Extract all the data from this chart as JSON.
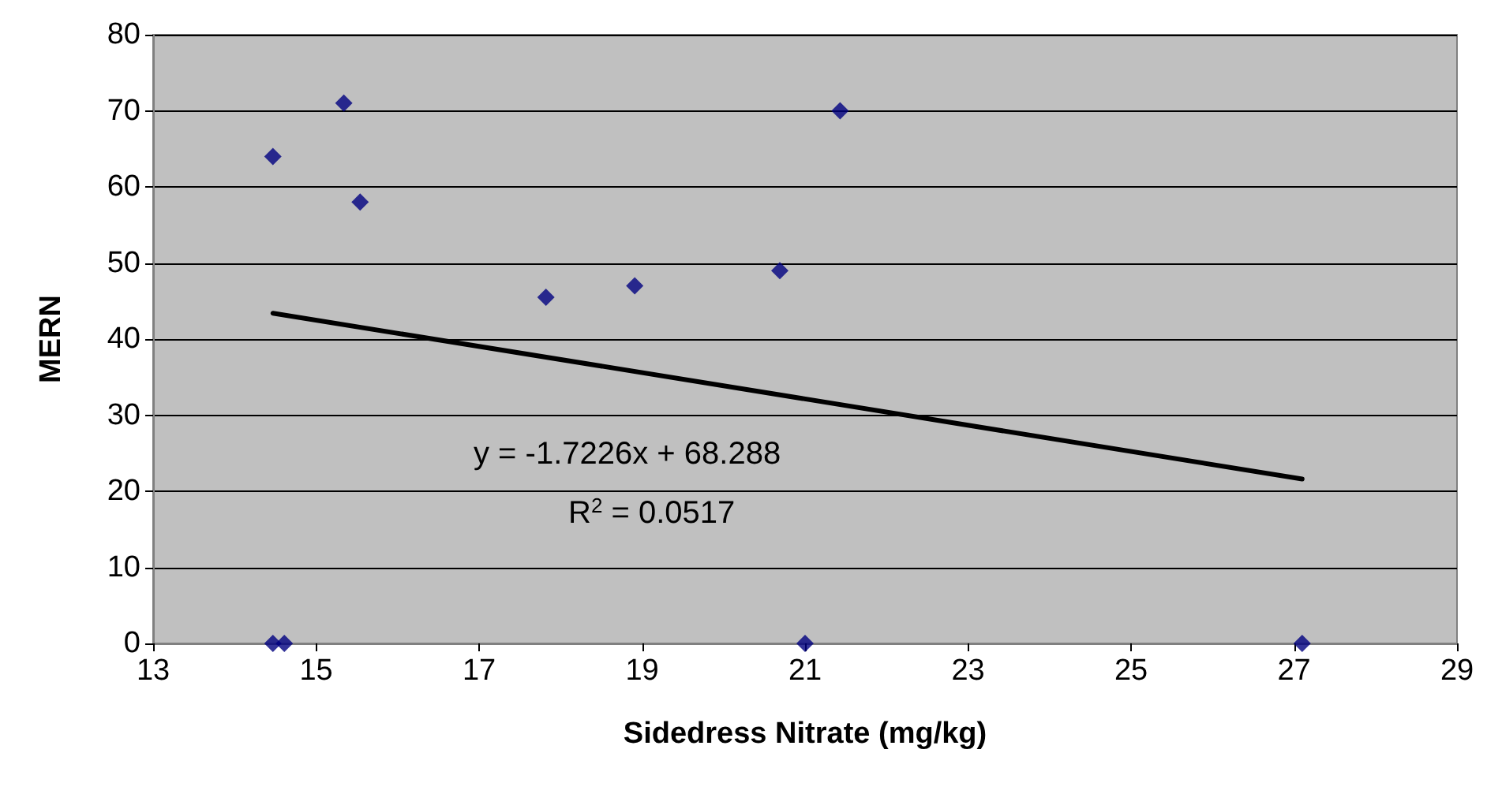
{
  "chart_data": {
    "type": "scatter",
    "xlabel": "Sidedress Nitrate (mg/kg)",
    "ylabel": "MERN",
    "xlim": [
      13,
      29
    ],
    "xticks": [
      13,
      15,
      17,
      19,
      21,
      23,
      25,
      27,
      29
    ],
    "ylim": [
      0,
      80
    ],
    "yticks": [
      0,
      10,
      20,
      30,
      40,
      50,
      60,
      70,
      80
    ],
    "grid": "y",
    "series": [
      {
        "type": "scatter",
        "marker": "diamond",
        "color": "#000080",
        "x": [
          14.47,
          15.34,
          15.54,
          17.82,
          18.91,
          20.69,
          21.43,
          14.47,
          14.61,
          21.0,
          27.1
        ],
        "values": [
          64,
          71,
          58,
          45.5,
          47,
          49,
          70,
          0,
          0,
          0,
          0
        ]
      },
      {
        "type": "line",
        "marker": "none",
        "color": "#000000",
        "x": [
          14.47,
          27.1
        ],
        "values": [
          43.4,
          21.6
        ]
      }
    ],
    "annotations": [
      "y = -1.7226x + 68.288",
      "R$^{2}$ = 0.0517"
    ]
  }
}
